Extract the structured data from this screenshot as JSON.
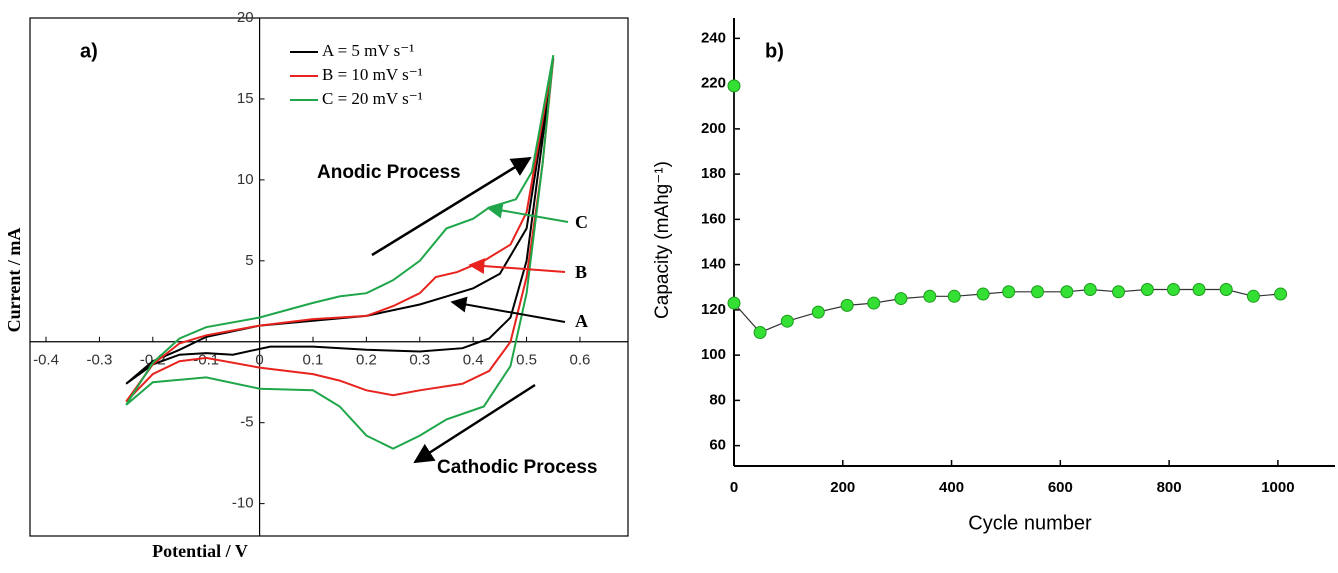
{
  "chart_data": [
    {
      "type": "line",
      "label": "a)",
      "xlabel": "Potential / V",
      "ylabel": "Current / mA",
      "xlim": [
        -0.43,
        0.69
      ],
      "ylim": [
        -12,
        20
      ],
      "xticks": [
        -0.4,
        -0.3,
        -0.2,
        -0.1,
        0,
        0.1,
        0.2,
        0.3,
        0.4,
        0.5,
        0.6
      ],
      "yticks": [
        -10,
        -5,
        5,
        10,
        15,
        20
      ],
      "series": [
        {
          "name": "A = 5 mV s⁻¹",
          "color": "#000000",
          "x": [
            -0.25,
            -0.2,
            -0.15,
            -0.1,
            0,
            0.1,
            0.2,
            0.3,
            0.35,
            0.4,
            0.45,
            0.5,
            0.55,
            0.52,
            0.5,
            0.47,
            0.43,
            0.38,
            0.3,
            0.2,
            0.1,
            0.02,
            -0.05,
            -0.1,
            -0.15,
            -0.2,
            -0.25
          ],
          "y": [
            -2.6,
            -1.2,
            -0.5,
            0.3,
            1.0,
            1.3,
            1.6,
            2.3,
            2.8,
            3.3,
            4.2,
            7,
            17.5,
            10,
            5,
            1.5,
            0.2,
            -0.4,
            -0.6,
            -0.5,
            -0.3,
            -0.3,
            -0.8,
            -0.7,
            -0.8,
            -1.4,
            -2.6
          ]
        },
        {
          "name": "B = 10 mV s⁻¹",
          "color": "#e8231e",
          "x": [
            -0.25,
            -0.2,
            -0.15,
            -0.1,
            0,
            0.1,
            0.2,
            0.25,
            0.3,
            0.33,
            0.37,
            0.42,
            0.47,
            0.5,
            0.55,
            0.53,
            0.5,
            0.47,
            0.43,
            0.38,
            0.3,
            0.25,
            0.2,
            0.15,
            0.1,
            0,
            -0.1,
            -0.15,
            -0.2,
            -0.25
          ],
          "y": [
            -3.7,
            -1.4,
            -0.1,
            0.4,
            1.0,
            1.4,
            1.6,
            2.2,
            3.0,
            4.0,
            4.3,
            5.0,
            6.0,
            8,
            17.5,
            11,
            4,
            0,
            -1.8,
            -2.6,
            -3.0,
            -3.3,
            -3.0,
            -2.4,
            -2.0,
            -1.6,
            -1.0,
            -1.2,
            -2.0,
            -3.7
          ]
        },
        {
          "name": "C = 20 mV s⁻¹",
          "color": "#1fa64a",
          "x": [
            -0.25,
            -0.2,
            -0.15,
            -0.1,
            0,
            0.1,
            0.15,
            0.2,
            0.25,
            0.3,
            0.35,
            0.4,
            0.43,
            0.48,
            0.51,
            0.55,
            0.53,
            0.5,
            0.47,
            0.42,
            0.35,
            0.3,
            0.25,
            0.2,
            0.15,
            0.1,
            0,
            -0.1,
            -0.2,
            -0.25
          ],
          "y": [
            -3.9,
            -1.3,
            0.2,
            0.9,
            1.5,
            2.4,
            2.8,
            3.0,
            3.8,
            5.0,
            7.0,
            7.6,
            8.3,
            8.8,
            10.5,
            17.7,
            11,
            3,
            -1.5,
            -4,
            -4.8,
            -5.8,
            -6.6,
            -5.8,
            -4.0,
            -3.0,
            -2.9,
            -2.2,
            -2.5,
            -3.9
          ]
        }
      ],
      "annotations": [
        "Anodic Process",
        "Cathodic Process",
        "A",
        "B",
        "C"
      ]
    },
    {
      "type": "scatter",
      "label": "b)",
      "xlabel": "Cycle number",
      "ylabel": "Capacity (mAhg⁻¹)",
      "xlim": [
        0,
        1105
      ],
      "ylim": [
        51,
        249
      ],
      "xticks": [
        0,
        200,
        400,
        600,
        800,
        1000
      ],
      "yticks": [
        60,
        80,
        100,
        120,
        140,
        160,
        180,
        200,
        220,
        240
      ],
      "connect": true,
      "color": "#33e033",
      "line_color": "#333333",
      "x": [
        0,
        0,
        48,
        98,
        155,
        208,
        257,
        307,
        360,
        405,
        458,
        505,
        558,
        612,
        655,
        707,
        760,
        808,
        855,
        905,
        955,
        1005
      ],
      "y": [
        219,
        123,
        110,
        115,
        119,
        122,
        123,
        125,
        126,
        126,
        127,
        128,
        128,
        128,
        129,
        128,
        129,
        129,
        129,
        129,
        126,
        127
      ]
    }
  ]
}
